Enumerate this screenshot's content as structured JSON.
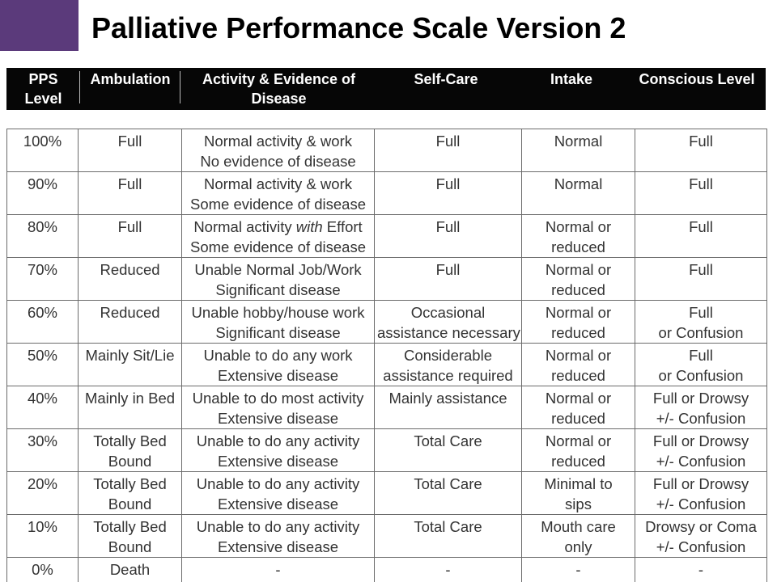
{
  "title": "Palliative Performance Scale Version 2",
  "accent_color": "#5b3a7b",
  "columns": [
    [
      "PPS",
      "Level"
    ],
    [
      "Ambulation"
    ],
    [
      "Activity & Evidence of",
      "Disease"
    ],
    [
      "Self-Care"
    ],
    [
      "Intake"
    ],
    [
      "Conscious Level"
    ]
  ],
  "rows": [
    [
      [
        "100%"
      ],
      [
        "Full"
      ],
      [
        "Normal activity & work",
        "No evidence of disease"
      ],
      [
        "Full"
      ],
      [
        "Normal"
      ],
      [
        "Full"
      ]
    ],
    [
      [
        "90%"
      ],
      [
        "Full"
      ],
      [
        "Normal activity & work",
        "Some evidence of disease"
      ],
      [
        "Full"
      ],
      [
        "Normal"
      ],
      [
        "Full"
      ]
    ],
    [
      [
        "80%"
      ],
      [
        "Full"
      ],
      [
        "Normal activity with Effort",
        "Some evidence of disease"
      ],
      [
        "Full"
      ],
      [
        "Normal or",
        "reduced"
      ],
      [
        "Full"
      ]
    ],
    [
      [
        "70%"
      ],
      [
        "Reduced"
      ],
      [
        "Unable Normal Job/Work",
        "Significant disease"
      ],
      [
        "Full"
      ],
      [
        "Normal or",
        "reduced"
      ],
      [
        "Full"
      ]
    ],
    [
      [
        "60%"
      ],
      [
        "Reduced"
      ],
      [
        "Unable hobby/house work",
        "Significant disease"
      ],
      [
        "Occasional",
        "assistance necessary"
      ],
      [
        "Normal or",
        "reduced"
      ],
      [
        "Full",
        "or Confusion"
      ]
    ],
    [
      [
        "50%"
      ],
      [
        "Mainly Sit/Lie"
      ],
      [
        "Unable to do any work",
        "Extensive disease"
      ],
      [
        "Considerable",
        "assistance required"
      ],
      [
        "Normal or",
        "reduced"
      ],
      [
        "Full",
        "or Confusion"
      ]
    ],
    [
      [
        "40%"
      ],
      [
        "Mainly in Bed"
      ],
      [
        "Unable to do most activity",
        "Extensive disease"
      ],
      [
        "Mainly assistance"
      ],
      [
        "Normal or",
        "reduced"
      ],
      [
        "Full or Drowsy",
        "+/- Confusion"
      ]
    ],
    [
      [
        "30%"
      ],
      [
        "Totally Bed",
        "Bound"
      ],
      [
        "Unable to do any activity",
        "Extensive disease"
      ],
      [
        "Total Care"
      ],
      [
        "Normal or",
        "reduced"
      ],
      [
        "Full or Drowsy",
        "+/- Confusion"
      ]
    ],
    [
      [
        "20%"
      ],
      [
        "Totally Bed",
        "Bound"
      ],
      [
        "Unable to do any activity",
        "Extensive disease"
      ],
      [
        "Total Care"
      ],
      [
        "Minimal to",
        "sips"
      ],
      [
        "Full or Drowsy",
        "+/- Confusion"
      ]
    ],
    [
      [
        "10%"
      ],
      [
        "Totally Bed",
        "Bound"
      ],
      [
        "Unable to do any activity",
        "Extensive disease"
      ],
      [
        "Total Care"
      ],
      [
        "Mouth care",
        "only"
      ],
      [
        "Drowsy or Coma",
        "+/- Confusion"
      ]
    ],
    [
      [
        "0%"
      ],
      [
        "Death"
      ],
      [
        "-"
      ],
      [
        "-"
      ],
      [
        "-"
      ],
      [
        "-"
      ]
    ]
  ]
}
